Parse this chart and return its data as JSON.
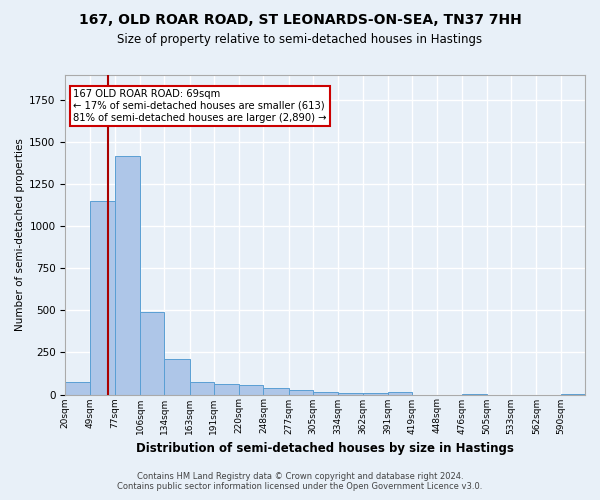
{
  "title": "167, OLD ROAR ROAD, ST LEONARDS-ON-SEA, TN37 7HH",
  "subtitle": "Size of property relative to semi-detached houses in Hastings",
  "xlabel": "Distribution of semi-detached houses by size in Hastings",
  "ylabel": "Number of semi-detached properties",
  "footer_line1": "Contains HM Land Registry data © Crown copyright and database right 2024.",
  "footer_line2": "Contains public sector information licensed under the Open Government Licence v3.0.",
  "annotation_line1": "167 OLD ROAR ROAD: 69sqm",
  "annotation_line2": "← 17% of semi-detached houses are smaller (613)",
  "annotation_line3": "81% of semi-detached houses are larger (2,890) →",
  "property_size": 69,
  "bar_categories": [
    "20sqm",
    "49sqm",
    "77sqm",
    "106sqm",
    "134sqm",
    "163sqm",
    "191sqm",
    "220sqm",
    "248sqm",
    "277sqm",
    "305sqm",
    "334sqm",
    "362sqm",
    "391sqm",
    "419sqm",
    "448sqm",
    "476sqm",
    "505sqm",
    "533sqm",
    "562sqm",
    "590sqm"
  ],
  "bar_values": [
    75,
    1150,
    1420,
    490,
    210,
    75,
    65,
    55,
    40,
    25,
    15,
    10,
    10,
    15,
    0,
    0,
    5,
    0,
    0,
    0,
    5
  ],
  "bar_edges": [
    20,
    49,
    77,
    106,
    134,
    163,
    191,
    220,
    248,
    277,
    305,
    334,
    362,
    391,
    419,
    448,
    476,
    505,
    533,
    562,
    590
  ],
  "bar_color": "#aec6e8",
  "bar_edge_color": "#5a9fd4",
  "vline_x": 69,
  "vline_color": "#aa0000",
  "ylim": [
    0,
    1900
  ],
  "bg_color": "#e8f0f8",
  "grid_color": "#ffffff",
  "annotation_box_color": "#ffffff",
  "annotation_box_edge": "#cc0000",
  "title_fontsize": 10,
  "subtitle_fontsize": 8.5
}
